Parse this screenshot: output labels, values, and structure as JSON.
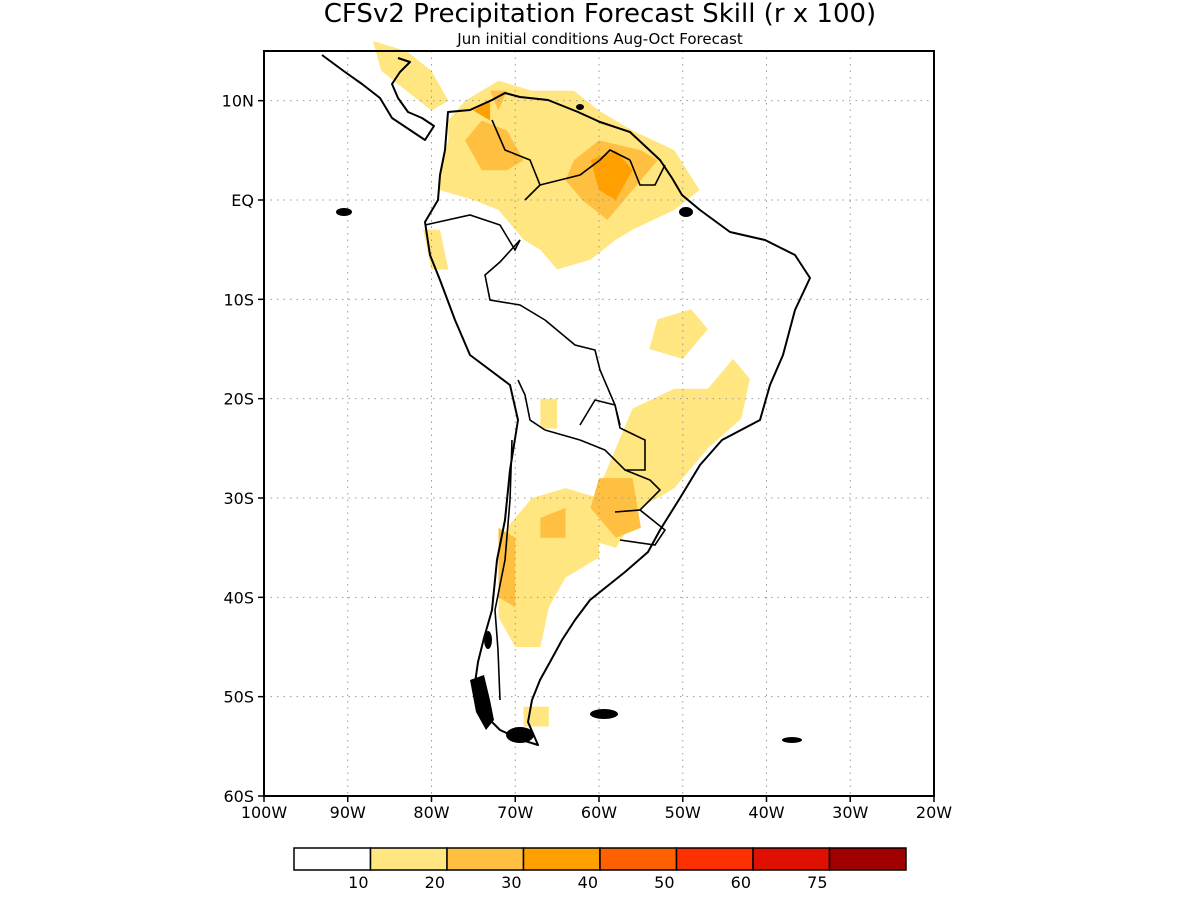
{
  "title": "CFSv2 Precipitation Forecast Skill (r x 100)",
  "subtitle": "Jun initial conditions  Aug-Oct Forecast",
  "map": {
    "lon_range": [
      -100,
      -20
    ],
    "lat_range": [
      -60,
      15
    ],
    "lon_ticks": [
      {
        "value": -100,
        "label": "100W"
      },
      {
        "value": -90,
        "label": "90W"
      },
      {
        "value": -80,
        "label": "80W"
      },
      {
        "value": -70,
        "label": "70W"
      },
      {
        "value": -60,
        "label": "60W"
      },
      {
        "value": -50,
        "label": "50W"
      },
      {
        "value": -40,
        "label": "40W"
      },
      {
        "value": -30,
        "label": "30W"
      },
      {
        "value": -20,
        "label": "20W"
      }
    ],
    "lat_ticks": [
      {
        "value": 10,
        "label": "10N"
      },
      {
        "value": 0,
        "label": "EQ"
      },
      {
        "value": -10,
        "label": "10S"
      },
      {
        "value": -20,
        "label": "20S"
      },
      {
        "value": -30,
        "label": "30S"
      },
      {
        "value": -40,
        "label": "40S"
      },
      {
        "value": -50,
        "label": "50S"
      },
      {
        "value": -60,
        "label": "60S"
      }
    ]
  },
  "colorbar": {
    "colors": [
      "#ffffff",
      "#ffe680",
      "#ffbf40",
      "#ffa000",
      "#ff6000",
      "#ff3000",
      "#e01000",
      "#a00000"
    ],
    "labels": [
      "10",
      "20",
      "30",
      "40",
      "50",
      "60",
      "75"
    ]
  },
  "skill_regions": [
    {
      "level": 10,
      "name": "venezuela-colombia",
      "poly": [
        [
          -78,
          8
        ],
        [
          -76,
          10
        ],
        [
          -72,
          12
        ],
        [
          -68,
          11
        ],
        [
          -63,
          11
        ],
        [
          -60,
          9
        ],
        [
          -56,
          7
        ],
        [
          -51,
          5
        ],
        [
          -48,
          1
        ],
        [
          -51,
          -1
        ],
        [
          -56,
          -3
        ],
        [
          -58,
          -4
        ],
        [
          -61,
          -6
        ],
        [
          -65,
          -7
        ],
        [
          -67,
          -5
        ],
        [
          -69,
          -4
        ],
        [
          -72,
          -1
        ],
        [
          -75,
          0
        ],
        [
          -79,
          1
        ],
        [
          -79,
          3
        ],
        [
          -78,
          6
        ]
      ]
    },
    {
      "level": 10,
      "name": "ecuador-peru-coast",
      "poly": [
        [
          -81,
          -3
        ],
        [
          -79,
          -3
        ],
        [
          -78,
          -7
        ],
        [
          -80,
          -7
        ]
      ]
    },
    {
      "level": 10,
      "name": "central-america",
      "poly": [
        [
          -87,
          16
        ],
        [
          -83,
          15
        ],
        [
          -80,
          13
        ],
        [
          -78,
          10
        ],
        [
          -80,
          9
        ],
        [
          -83,
          11
        ],
        [
          -86,
          13
        ]
      ]
    },
    {
      "level": 20,
      "name": "caribbean-coast",
      "poly": [
        [
          -73,
          11
        ],
        [
          -71,
          11
        ],
        [
          -72,
          9
        ]
      ]
    },
    {
      "level": 10,
      "name": "central-brazil",
      "poly": [
        [
          -53,
          -12
        ],
        [
          -49,
          -11
        ],
        [
          -47,
          -13
        ],
        [
          -50,
          -16
        ],
        [
          -54,
          -15
        ]
      ]
    },
    {
      "level": 10,
      "name": "southeast-brazil",
      "poly": [
        [
          -58,
          -25
        ],
        [
          -56,
          -21
        ],
        [
          -51,
          -19
        ],
        [
          -47,
          -19
        ],
        [
          -44,
          -16
        ],
        [
          -42,
          -18
        ],
        [
          -43,
          -22
        ],
        [
          -47,
          -25
        ],
        [
          -51,
          -29
        ],
        [
          -55,
          -31
        ],
        [
          -58,
          -35
        ],
        [
          -62,
          -34
        ],
        [
          -60,
          -29
        ]
      ]
    },
    {
      "level": 10,
      "name": "argentina",
      "poly": [
        [
          -71,
          -33
        ],
        [
          -68,
          -30
        ],
        [
          -64,
          -29
        ],
        [
          -60,
          -30
        ],
        [
          -60,
          -36
        ],
        [
          -64,
          -38
        ],
        [
          -66,
          -41
        ],
        [
          -67,
          -45
        ],
        [
          -70,
          -45
        ],
        [
          -72,
          -42
        ],
        [
          -72,
          -37
        ]
      ]
    },
    {
      "level": 10,
      "name": "chaco",
      "poly": [
        [
          -67,
          -20
        ],
        [
          -65,
          -20
        ],
        [
          -65,
          -23
        ],
        [
          -67,
          -23
        ]
      ]
    },
    {
      "level": 10,
      "name": "tierra-del-fuego",
      "poly": [
        [
          -69,
          -51
        ],
        [
          -66,
          -51
        ],
        [
          -66,
          -53
        ],
        [
          -69,
          -53
        ]
      ]
    },
    {
      "level": 20,
      "name": "colombia-core",
      "poly": [
        [
          -76,
          6
        ],
        [
          -74,
          8
        ],
        [
          -71,
          7
        ],
        [
          -69,
          4
        ],
        [
          -71,
          3
        ],
        [
          -74,
          3
        ]
      ]
    },
    {
      "level": 20,
      "name": "guiana-core",
      "poly": [
        [
          -63,
          4
        ],
        [
          -60,
          6
        ],
        [
          -55,
          5
        ],
        [
          -53,
          4
        ],
        [
          -56,
          1
        ],
        [
          -59,
          -2
        ],
        [
          -62,
          0
        ],
        [
          -64,
          2
        ]
      ]
    },
    {
      "level": 20,
      "name": "paraguay-core",
      "poly": [
        [
          -60,
          -28
        ],
        [
          -56,
          -28
        ],
        [
          -55,
          -33
        ],
        [
          -58,
          -34
        ],
        [
          -61,
          -31
        ]
      ]
    },
    {
      "level": 20,
      "name": "andes-core",
      "poly": [
        [
          -72,
          -33
        ],
        [
          -70,
          -34
        ],
        [
          -70,
          -41
        ],
        [
          -72,
          -40
        ]
      ]
    },
    {
      "level": 20,
      "name": "pampa-core",
      "poly": [
        [
          -67,
          -32
        ],
        [
          -64,
          -31
        ],
        [
          -64,
          -34
        ],
        [
          -67,
          -34
        ]
      ]
    },
    {
      "level": 30,
      "name": "guiana-peak",
      "poly": [
        [
          -61,
          4
        ],
        [
          -58,
          5
        ],
        [
          -56,
          3
        ],
        [
          -58,
          0
        ],
        [
          -60,
          1
        ]
      ]
    },
    {
      "level": 30,
      "name": "colombia-peak",
      "poly": [
        [
          -75,
          9
        ],
        [
          -73,
          10
        ],
        [
          -73,
          8
        ]
      ]
    }
  ]
}
